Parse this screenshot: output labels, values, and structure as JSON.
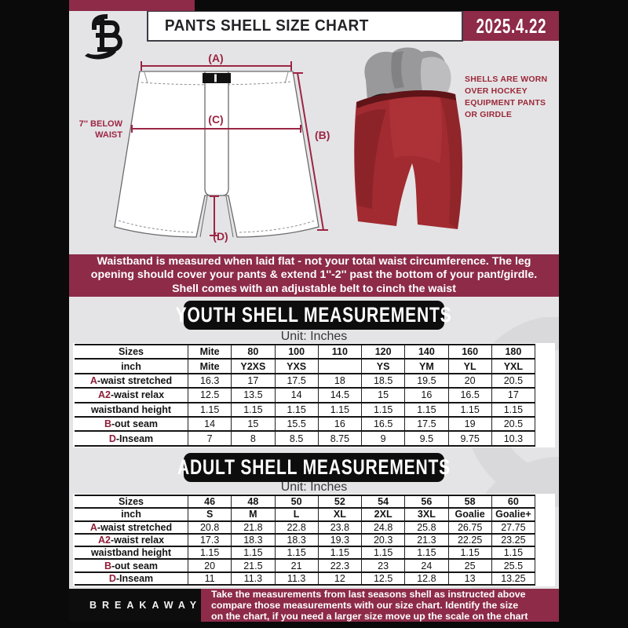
{
  "header": {
    "title": "PANTS SHELL SIZE CHART",
    "date": "2025.4.22"
  },
  "diagram": {
    "label_a": "(A)",
    "label_b": "(B)",
    "label_c": "(C)",
    "label_d": "(D)",
    "waist_note_line1": "7'' BELOW",
    "waist_note_line2": "WAIST"
  },
  "photo": {
    "note_lines": [
      "SHELLS ARE WORN",
      "OVER HOCKEY",
      "EQUIPMENT PANTS",
      "OR GIRDLE"
    ]
  },
  "info_banner": {
    "lines": [
      "Waistband is measured when laid flat - not your total waist circumference. The leg",
      "opening should cover your pants & extend 1''-2'' past the bottom of your pant/girdle.",
      "Shell comes with an adjustable belt to cinch the waist"
    ]
  },
  "youth": {
    "heading": "YOUTH SHELL MEASUREMENTS",
    "unit_label": "Unit: Inches",
    "rows": [
      {
        "prefix": "",
        "label": "Sizes",
        "header": true,
        "values": [
          "Mite",
          "80",
          "100",
          "110",
          "120",
          "140",
          "160",
          "180"
        ]
      },
      {
        "prefix": "",
        "label": "inch",
        "header": true,
        "values": [
          "Mite",
          "Y2XS",
          "YXS",
          "",
          "YS",
          "YM",
          "YL",
          "YXL"
        ]
      },
      {
        "prefix": "A",
        "label": "-waist stretched",
        "header": false,
        "values": [
          "16.3",
          "17",
          "17.5",
          "18",
          "18.5",
          "19.5",
          "20",
          "20.5"
        ]
      },
      {
        "prefix": "A2",
        "label": "-waist relax",
        "header": false,
        "values": [
          "12.5",
          "13.5",
          "14",
          "14.5",
          "15",
          "16",
          "16.5",
          "17"
        ]
      },
      {
        "prefix": "",
        "label": "waistband height",
        "header": false,
        "values": [
          "1.15",
          "1.15",
          "1.15",
          "1.15",
          "1.15",
          "1.15",
          "1.15",
          "1.15"
        ]
      },
      {
        "prefix": "B",
        "label": "-out seam",
        "header": false,
        "values": [
          "14",
          "15",
          "15.5",
          "16",
          "16.5",
          "17.5",
          "19",
          "20.5"
        ]
      },
      {
        "prefix": "D",
        "label": "-Inseam",
        "header": false,
        "values": [
          "7",
          "8",
          "8.5",
          "8.75",
          "9",
          "9.5",
          "9.75",
          "10.3"
        ]
      }
    ]
  },
  "adult": {
    "heading": "ADULT SHELL MEASUREMENTS",
    "unit_label": "Unit: Inches",
    "rows": [
      {
        "prefix": "",
        "label": "Sizes",
        "header": true,
        "values": [
          "46",
          "48",
          "50",
          "52",
          "54",
          "56",
          "58",
          "60"
        ]
      },
      {
        "prefix": "",
        "label": "inch",
        "header": true,
        "values": [
          "S",
          "M",
          "L",
          "XL",
          "2XL",
          "3XL",
          "Goalie",
          "Goalie+"
        ]
      },
      {
        "prefix": "A",
        "label": "-waist stretched",
        "header": false,
        "values": [
          "20.8",
          "21.8",
          "22.8",
          "23.8",
          "24.8",
          "25.8",
          "26.75",
          "27.75"
        ]
      },
      {
        "prefix": "A2",
        "label": "-waist relax",
        "header": false,
        "values": [
          "17.3",
          "18.3",
          "18.3",
          "19.3",
          "20.3",
          "21.3",
          "22.25",
          "23.25"
        ]
      },
      {
        "prefix": "",
        "label": "waistband height",
        "header": false,
        "values": [
          "1.15",
          "1.15",
          "1.15",
          "1.15",
          "1.15",
          "1.15",
          "1.15",
          "1.15"
        ]
      },
      {
        "prefix": "B",
        "label": "-out seam",
        "header": false,
        "values": [
          "20",
          "21.5",
          "21",
          "22.3",
          "23",
          "24",
          "25",
          "25.5"
        ]
      },
      {
        "prefix": "D",
        "label": "-Inseam",
        "header": false,
        "values": [
          "11",
          "11.3",
          "11.3",
          "12",
          "12.5",
          "12.8",
          "13",
          "13.25"
        ]
      }
    ]
  },
  "footer": {
    "brand": "BREAKAWAY",
    "lines": [
      "Take the measurements from last seasons shell as instructed above",
      "compare those measurements  with our size chart. Identify the size",
      "on the chart, if you need a larger size move up the scale on the chart"
    ]
  },
  "colors": {
    "maroon": "#8d2b49",
    "maroon_line": "#9c2543",
    "maroon_letter": "#8e1e38",
    "page_bg": "#e4e4e6",
    "frame_black": "#0a0a0a"
  }
}
